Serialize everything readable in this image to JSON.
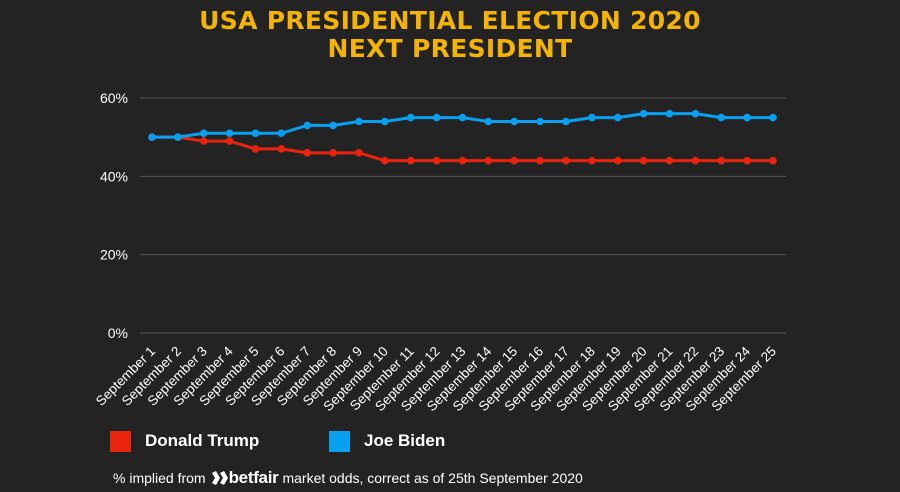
{
  "header": {
    "title_line1": "USA PRESIDENTIAL ELECTION 2020",
    "title_line2": "NEXT PRESIDENT"
  },
  "colors": {
    "background": "#232323",
    "title": "#f5b400",
    "grid": "#555555",
    "text": "#ffffff"
  },
  "chart_data": {
    "type": "line",
    "title": "USA PRESIDENTIAL ELECTION 2020 NEXT PRESIDENT",
    "x": [
      "September 1",
      "September 2",
      "September 3",
      "September 4",
      "September 5",
      "September 6",
      "September 7",
      "September 8",
      "September 9",
      "September 10",
      "September 11",
      "September 12",
      "September 13",
      "September 14",
      "September 15",
      "September 16",
      "September 17",
      "September 18",
      "September 19",
      "September 20",
      "September 21",
      "September 22",
      "September 23",
      "September 24",
      "September 25"
    ],
    "ylim": [
      0,
      60
    ],
    "yticks": [
      0,
      20,
      40,
      60
    ],
    "ytick_labels": [
      "0%",
      "20%",
      "40%",
      "60%"
    ],
    "grid": true,
    "legend_position": "bottom-left",
    "series": [
      {
        "name": "Donald Trump",
        "color": "#e8240e",
        "values": [
          50,
          50,
          49,
          49,
          47,
          47,
          46,
          46,
          46,
          44,
          44,
          44,
          44,
          44,
          44,
          44,
          44,
          44,
          44,
          44,
          44,
          44,
          44,
          44,
          44
        ]
      },
      {
        "name": "Joe Biden",
        "color": "#0aa0f0",
        "values": [
          50,
          50,
          51,
          51,
          51,
          51,
          53,
          53,
          54,
          54,
          55,
          55,
          55,
          54,
          54,
          54,
          54,
          55,
          55,
          56,
          56,
          56,
          55,
          55,
          55
        ]
      }
    ]
  },
  "footnote": {
    "prefix": "% implied from",
    "logo_text": "betfair",
    "suffix": "market odds, correct as of 25th September 2020"
  }
}
